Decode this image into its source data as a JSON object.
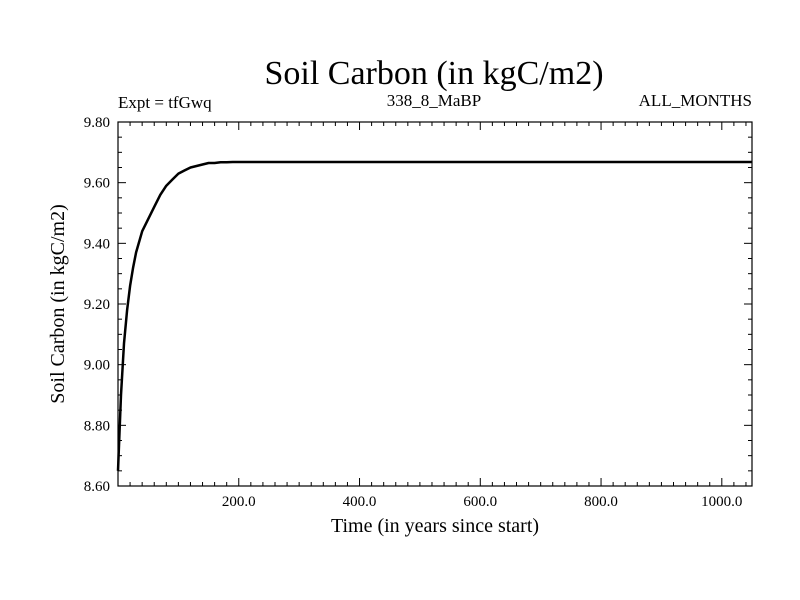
{
  "chart_data": {
    "type": "line",
    "title": "Soil Carbon (in kgC/m2)",
    "subtitle_left": "Expt = tfGwq",
    "subtitle_center": "338_8_MaBP",
    "subtitle_right": "ALL_MONTHS",
    "xlabel": "Time (in years since start)",
    "ylabel": "Soil Carbon (in kgC/m2)",
    "xlim": [
      0,
      1050
    ],
    "ylim": [
      8.6,
      9.8
    ],
    "x_ticks": [
      200,
      400,
      600,
      800,
      1000
    ],
    "x_tick_labels": [
      "200.0",
      "400.0",
      "600.0",
      "800.0",
      "1000.0"
    ],
    "y_ticks": [
      8.6,
      8.8,
      9.0,
      9.2,
      9.4,
      9.6,
      9.8
    ],
    "y_tick_labels": [
      "8.60",
      "8.80",
      "9.00",
      "9.20",
      "9.40",
      "9.60",
      "9.80"
    ],
    "series": [
      {
        "x": [
          0,
          2,
          5,
          10,
          15,
          20,
          25,
          30,
          40,
          50,
          60,
          70,
          80,
          90,
          100,
          110,
          120,
          130,
          140,
          150,
          160,
          170,
          180,
          190,
          200,
          1050
        ],
        "y": [
          8.65,
          8.75,
          8.9,
          9.07,
          9.18,
          9.26,
          9.32,
          9.37,
          9.44,
          9.48,
          9.52,
          9.56,
          9.59,
          9.61,
          9.63,
          9.64,
          9.65,
          9.655,
          9.66,
          9.665,
          9.665,
          9.667,
          9.667,
          9.668,
          9.668,
          9.668
        ]
      }
    ],
    "grid": false
  }
}
